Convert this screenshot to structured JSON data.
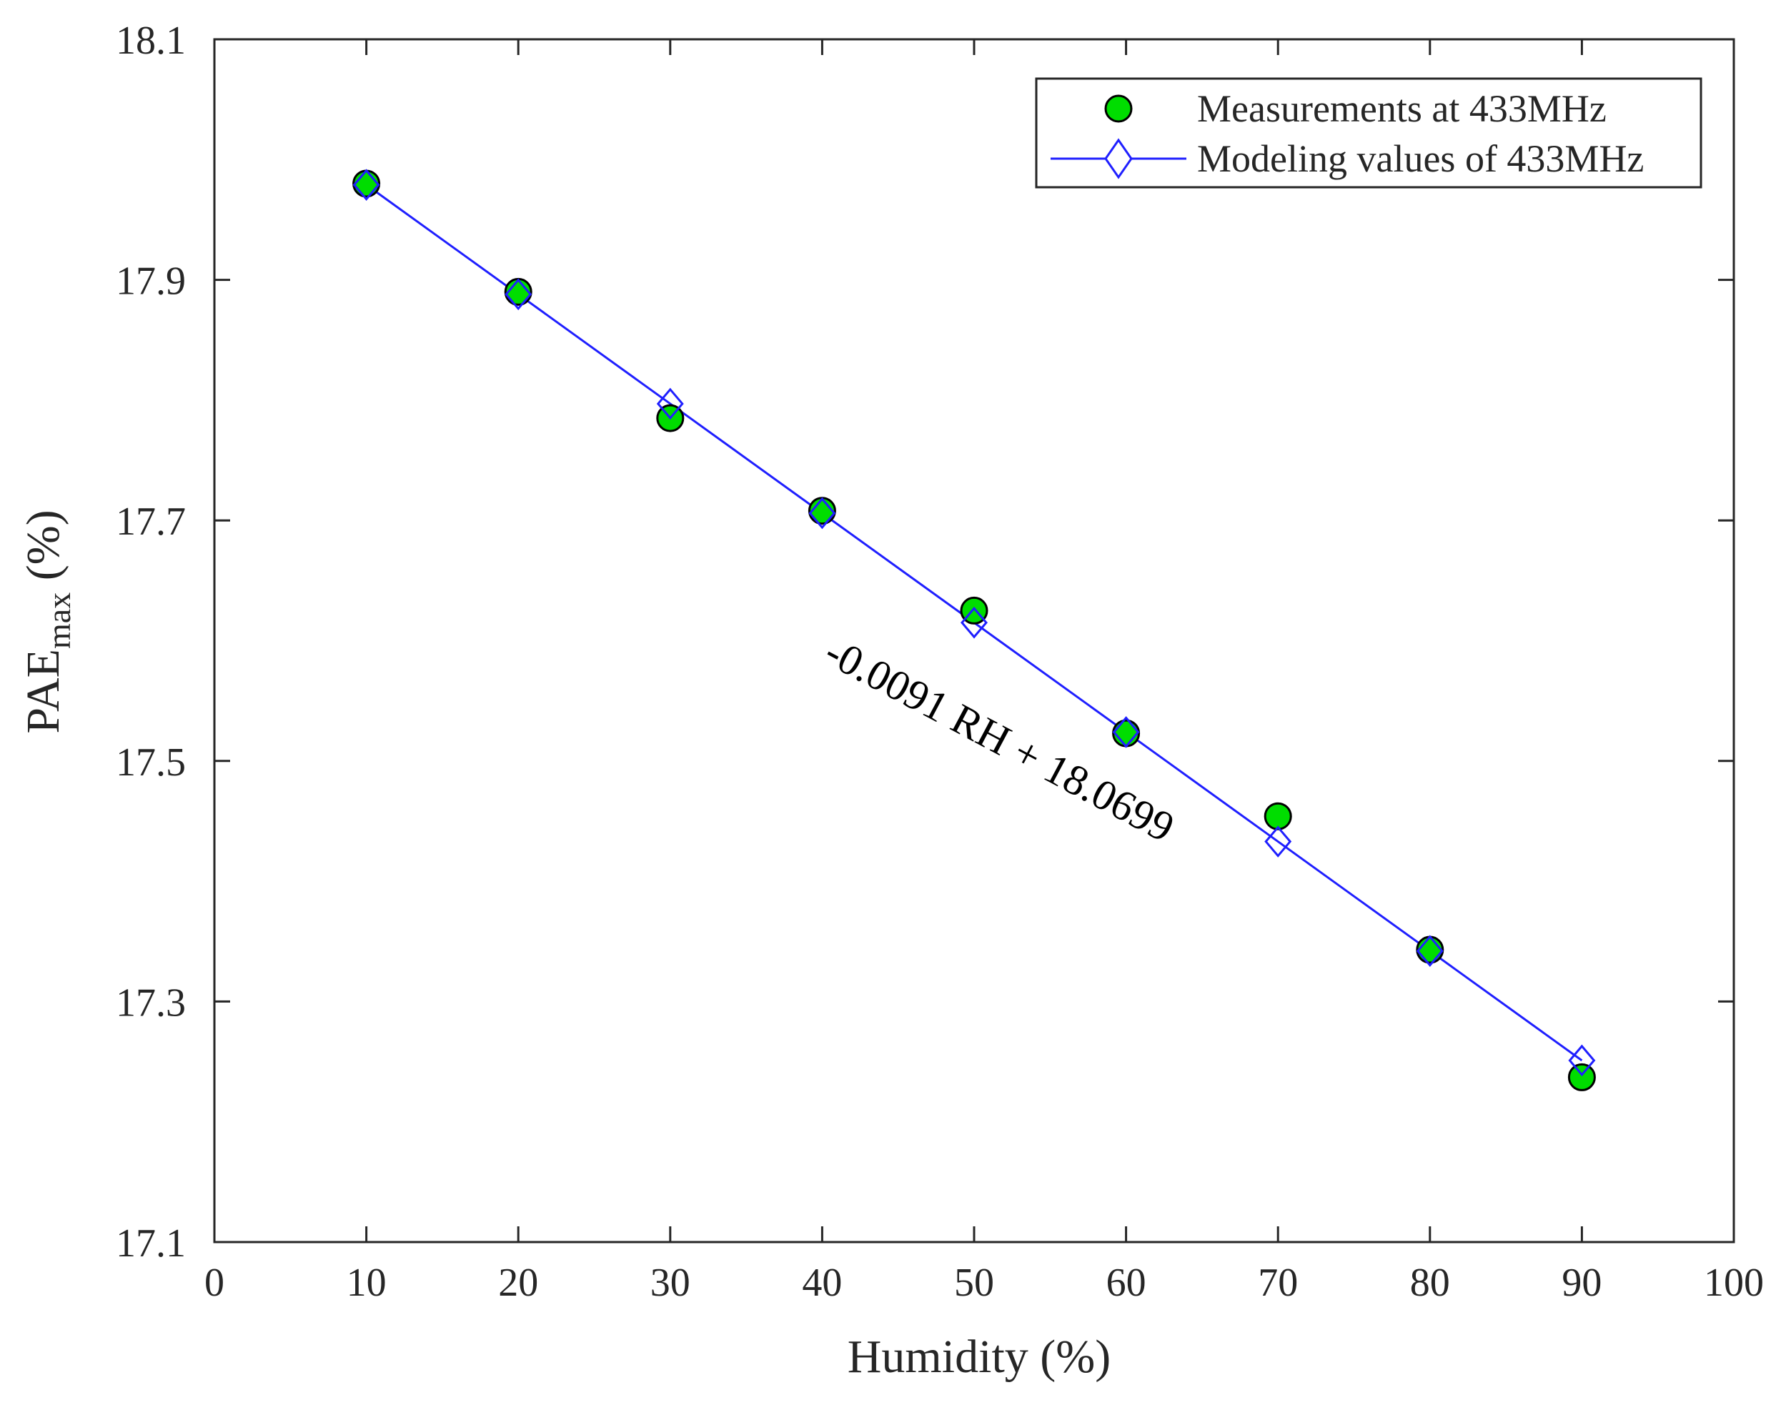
{
  "chart_data": {
    "type": "scatter",
    "xlabel": "Humidity (%)",
    "ylabel": {
      "main": "PAE",
      "sub": "max",
      "tail": " (%)"
    },
    "xlim": [
      0,
      100
    ],
    "ylim": [
      17.1,
      18.1
    ],
    "xticks": [
      "0",
      "10",
      "20",
      "30",
      "40",
      "50",
      "60",
      "70",
      "80",
      "90",
      "100"
    ],
    "yticks": [
      "17.1",
      "17.3",
      "17.5",
      "17.7",
      "17.9",
      "18.1"
    ],
    "grid": false,
    "legend_position": "top-right",
    "annotation": "-0.0091 RH + 18.0699",
    "series": [
      {
        "name": "Measurements at 433MHz",
        "marker": "circle",
        "color": "#00dd00",
        "edge_color": "#000000",
        "x": [
          10,
          20,
          30,
          40,
          50,
          60,
          70,
          80,
          90
        ],
        "y": [
          17.98,
          17.89,
          17.785,
          17.708,
          17.625,
          17.523,
          17.454,
          17.343,
          17.237
        ]
      },
      {
        "name": "Modeling values of 433MHz",
        "marker": "diamond",
        "line": true,
        "color": "#1f1fff",
        "x": [
          10,
          20,
          30,
          40,
          50,
          60,
          70,
          80,
          90
        ],
        "y": [
          17.979,
          17.888,
          17.797,
          17.706,
          17.615,
          17.524,
          17.433,
          17.342,
          17.251
        ]
      }
    ]
  }
}
